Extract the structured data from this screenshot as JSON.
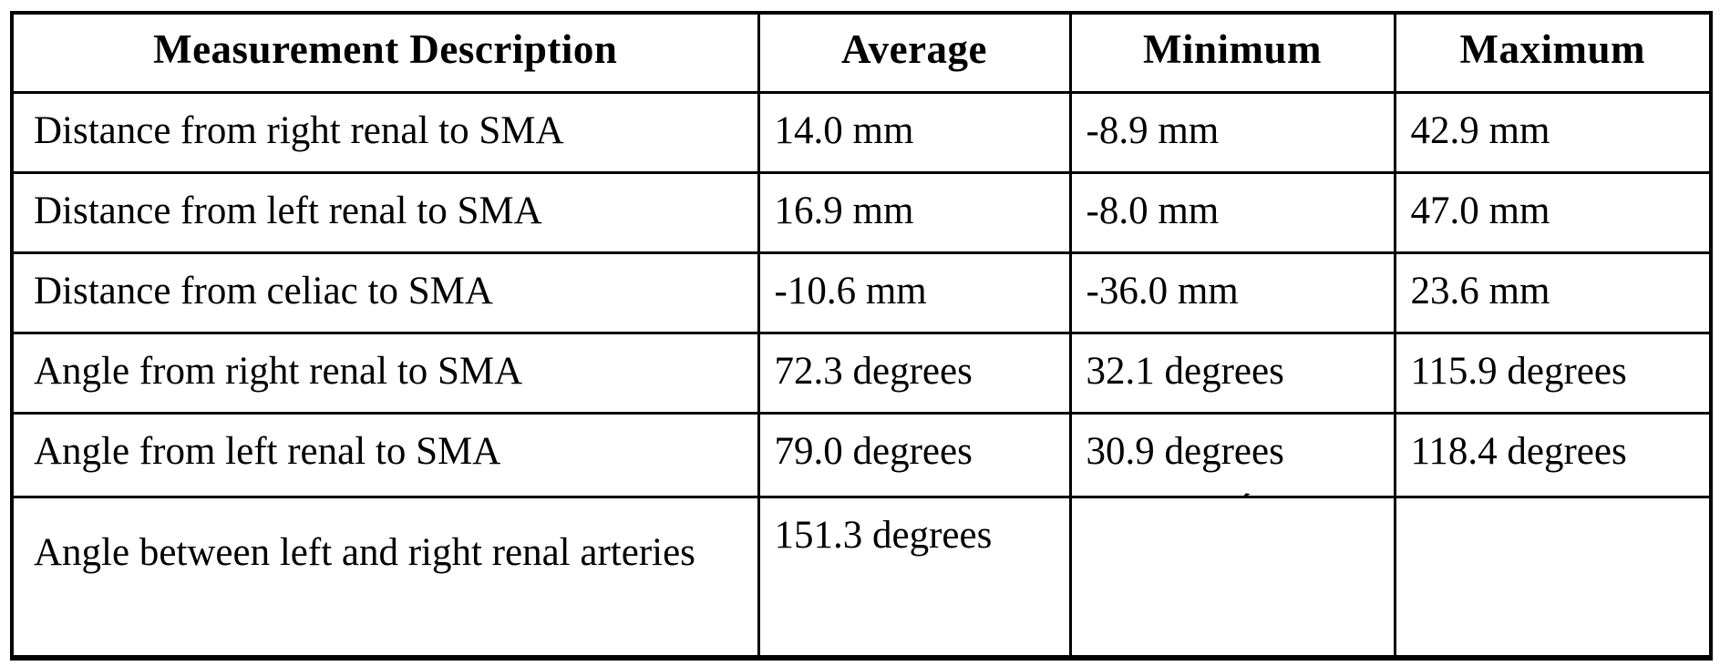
{
  "page": {
    "background": "#ffffff",
    "text_color": "#000000",
    "border_color": "#000000"
  },
  "table": {
    "columns": [
      "Measurement Description",
      "Average",
      "Minimum",
      "Maximum"
    ],
    "rows": [
      {
        "description": "Distance from right renal to SMA",
        "average": "14.0 mm",
        "minimum": "-8.9 mm",
        "maximum": "42.9 mm"
      },
      {
        "description": "Distance from left renal to SMA",
        "average": "16.9 mm",
        "minimum": "-8.0 mm",
        "maximum": "47.0 mm"
      },
      {
        "description": "Distance from celiac to SMA",
        "average": "-10.6 mm",
        "minimum": "-36.0 mm",
        "maximum": "23.6 mm"
      },
      {
        "description": "Angle from right renal to SMA",
        "average": "72.3 degrees",
        "minimum": "32.1 degrees",
        "maximum": "115.9 degrees"
      },
      {
        "description": "Angle from left renal to SMA",
        "average": "79.0 degrees",
        "minimum": "30.9 degrees",
        "maximum": "118.4 degrees"
      },
      {
        "description": "Angle between left and right renal arteries",
        "average": "151.3 degrees",
        "minimum": "",
        "maximum": ""
      }
    ]
  },
  "artifacts": {
    "stray_mark": "´"
  }
}
